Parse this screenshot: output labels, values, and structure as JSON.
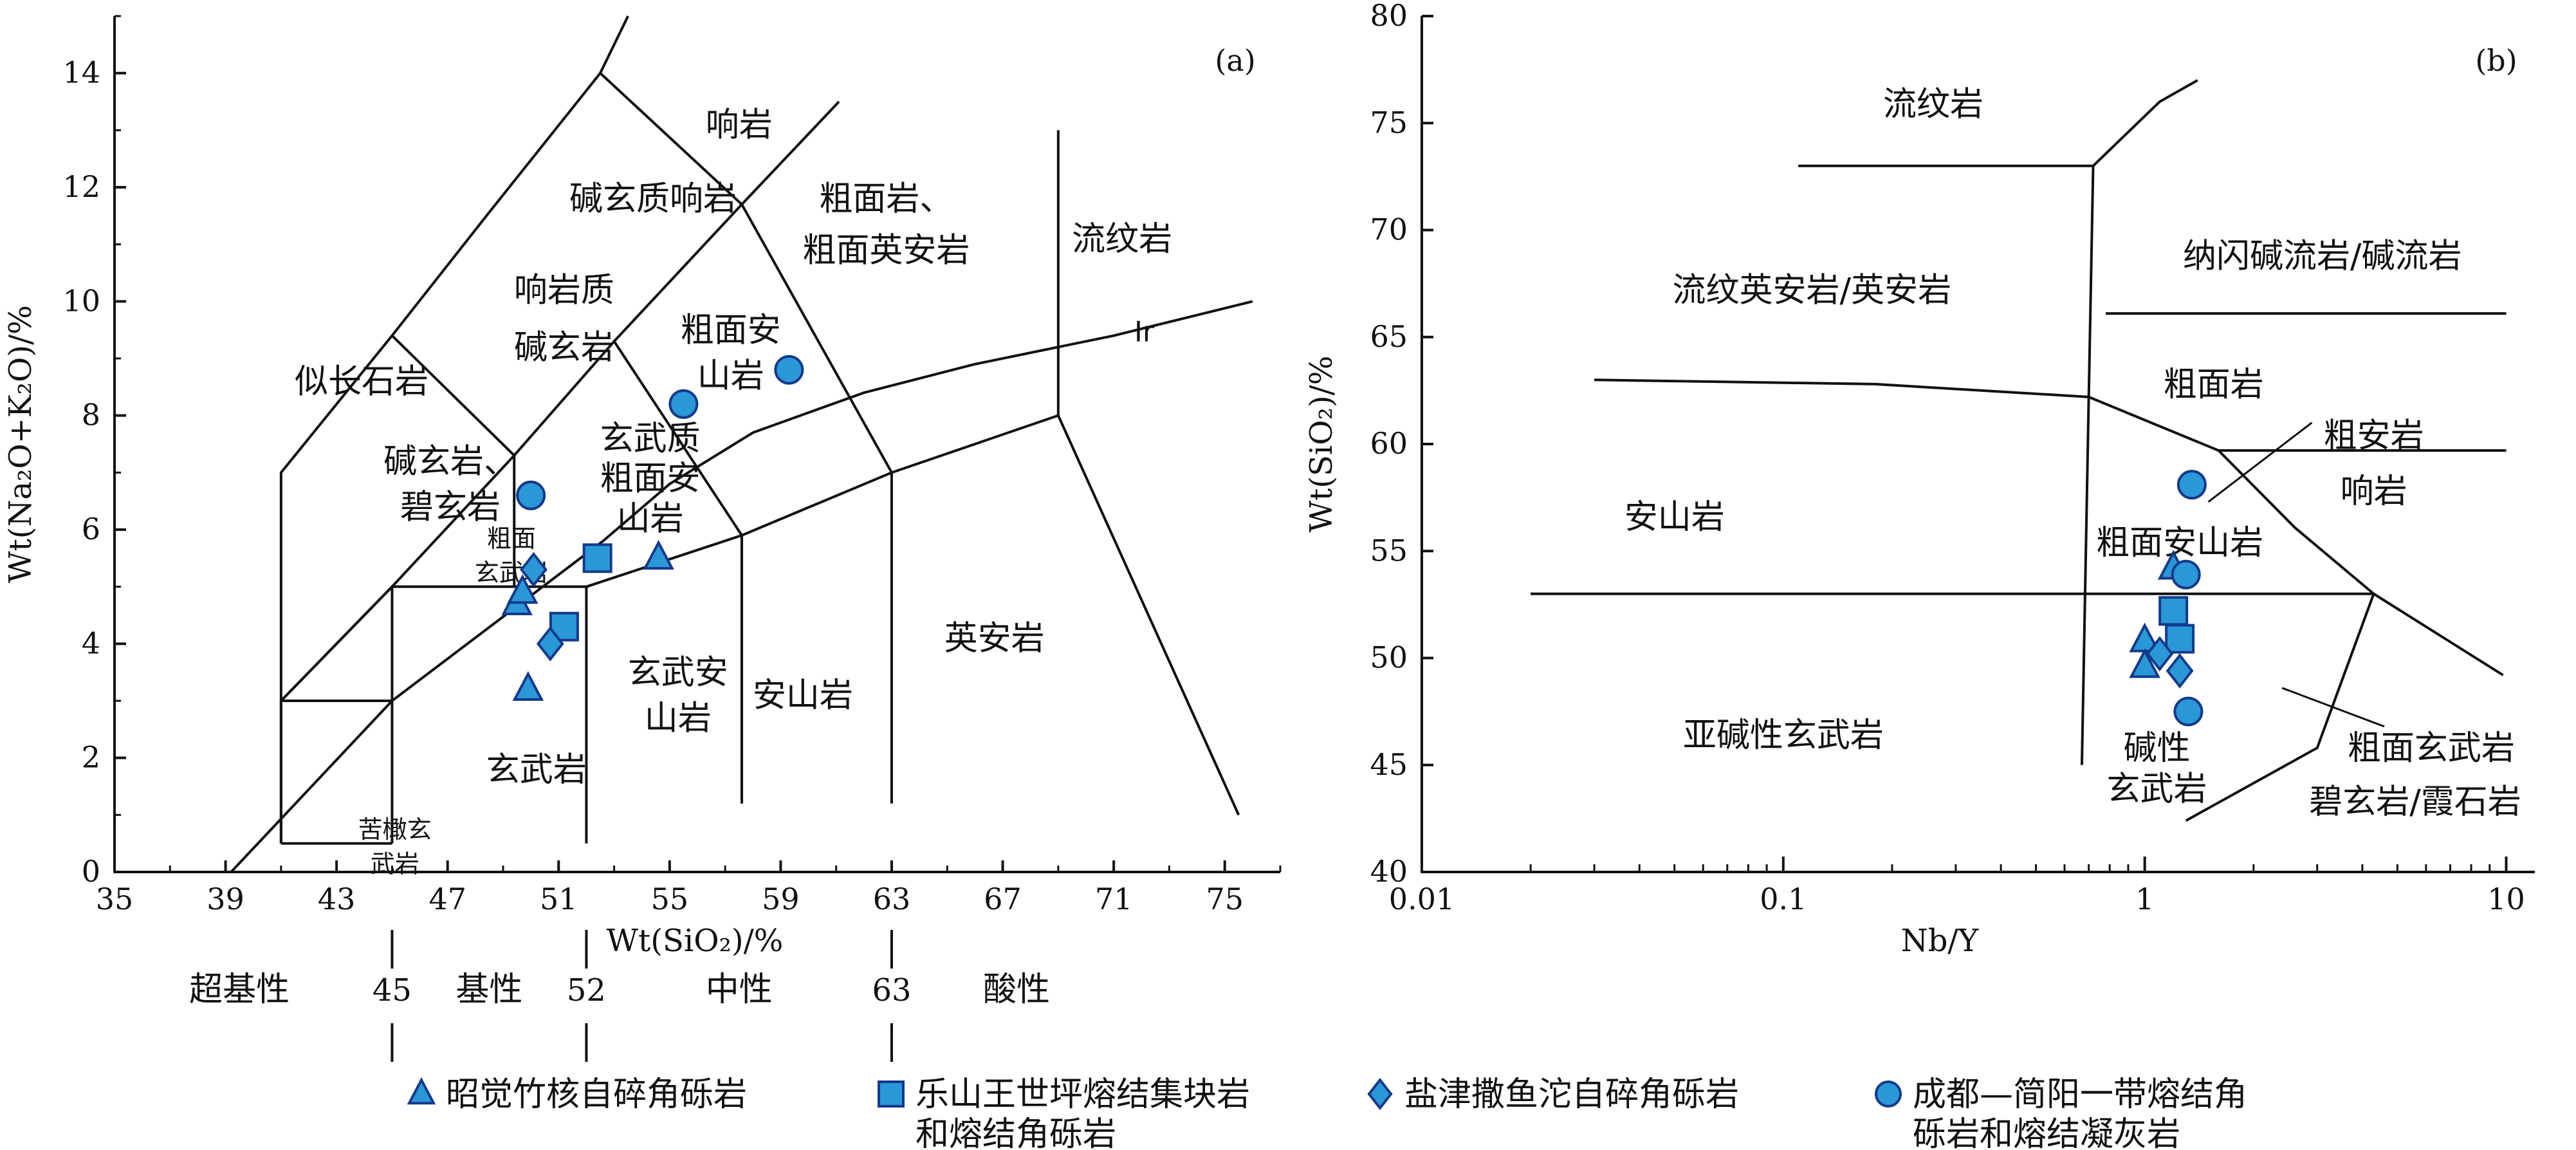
{
  "colors": {
    "marker_fill": "#2A98D6",
    "marker_stroke": "#13398C",
    "line": "#111111"
  },
  "chart_data": [
    {
      "panel": "(a)",
      "type": "scatter",
      "title": "",
      "xlabel": "Wt(SiO₂)/%",
      "ylabel": "Wt(Na₂O+K₂O)/%",
      "xlim": [
        35,
        77
      ],
      "ylim": [
        0,
        15
      ],
      "xticks": [
        "35",
        "39",
        "43",
        "47",
        "51",
        "55",
        "59",
        "63",
        "67",
        "71",
        "75"
      ],
      "yticks": [
        "0",
        "2",
        "4",
        "6",
        "8",
        "10",
        "12",
        "14"
      ],
      "field_labels": [
        "响岩",
        "碱玄质响岩",
        "粗面岩、",
        "粗面英安岩",
        "流纹岩",
        "响岩质",
        "碱玄岩",
        "粗面安",
        "山岩",
        "似长石岩",
        "玄武质",
        "粗面安",
        "山岩",
        "碱玄岩、",
        "碧玄岩",
        "粗面",
        "玄武岩",
        "玄武安",
        "山岩",
        "安山岩",
        "英安岩",
        "玄武岩",
        "苦橄玄",
        "武岩",
        "Ir"
      ],
      "classes": [
        {
          "label": "超基性",
          "bound": "45"
        },
        {
          "label": "基性",
          "bound": "52"
        },
        {
          "label": "中性",
          "bound": "63"
        },
        {
          "label": "酸性",
          "bound": ""
        }
      ],
      "series": [
        {
          "name": "昭觉竹核自碎角砾岩",
          "marker": "triangle",
          "points": [
            [
              49.5,
              4.7
            ],
            [
              49.9,
              3.2
            ],
            [
              54.6,
              5.5
            ],
            [
              49.7,
              4.9
            ]
          ]
        },
        {
          "name": "乐山王世坪熔结集块岩和熔结角砾岩",
          "marker": "square",
          "points": [
            [
              52.4,
              5.5
            ],
            [
              51.2,
              4.3
            ]
          ]
        },
        {
          "name": "盐津撒鱼沱自碎角砾岩",
          "marker": "diamond",
          "points": [
            [
              50.1,
              5.3
            ],
            [
              50.7,
              4.0
            ]
          ]
        },
        {
          "name": "成都—简阳一带熔结角砾岩和熔结凝灰岩",
          "marker": "circle",
          "points": [
            [
              50.0,
              6.6
            ],
            [
              55.5,
              8.2
            ],
            [
              59.3,
              8.8
            ]
          ]
        }
      ]
    },
    {
      "panel": "(b)",
      "type": "scatter",
      "title": "",
      "xlabel": "Nb/Y",
      "ylabel": "Wt(SiO₂)/%",
      "xscale": "log",
      "xlim": [
        0.01,
        12
      ],
      "ylim": [
        40,
        80
      ],
      "xticks": [
        "0.01",
        "0.1",
        "1",
        "10"
      ],
      "yticks": [
        "40",
        "45",
        "50",
        "55",
        "60",
        "65",
        "70",
        "75",
        "80"
      ],
      "field_labels": [
        "流纹岩",
        "纳闪碱流岩/碱流岩",
        "流纹英安岩/英安岩",
        "粗面岩",
        "粗安岩",
        "安山岩",
        "粗面安山岩",
        "响岩",
        "亚碱性玄武岩",
        "碱性",
        "玄武岩",
        "粗面玄武岩",
        "碧玄岩/霞石岩"
      ],
      "series": [
        {
          "name": "昭觉竹核自碎角砾岩",
          "marker": "triangle",
          "points": [
            [
              1.0,
              50.8
            ],
            [
              1.0,
              49.6
            ],
            [
              1.2,
              54.2
            ]
          ]
        },
        {
          "name": "乐山王世坪熔结集块岩和熔结角砾岩",
          "marker": "square",
          "points": [
            [
              1.2,
              52.2
            ],
            [
              1.25,
              50.9
            ]
          ]
        },
        {
          "name": "盐津撒鱼沱自碎角砾岩",
          "marker": "diamond",
          "points": [
            [
              1.25,
              49.4
            ],
            [
              1.1,
              50.2
            ]
          ]
        },
        {
          "name": "成都—简阳一带熔结角砾岩和熔结凝灰岩",
          "marker": "circle",
          "points": [
            [
              1.35,
              58.1
            ],
            [
              1.3,
              53.9
            ],
            [
              1.32,
              47.5
            ]
          ]
        }
      ]
    }
  ],
  "legend": [
    {
      "marker": "triangle",
      "lines": [
        "昭觉竹核自碎角砾岩"
      ]
    },
    {
      "marker": "square",
      "lines": [
        "乐山王世坪熔结集块岩",
        "和熔结角砾岩"
      ]
    },
    {
      "marker": "diamond",
      "lines": [
        "盐津撒鱼沱自碎角砾岩"
      ]
    },
    {
      "marker": "circle",
      "lines": [
        "成都—简阳一带熔结角",
        "砾岩和熔结凝灰岩"
      ]
    }
  ]
}
